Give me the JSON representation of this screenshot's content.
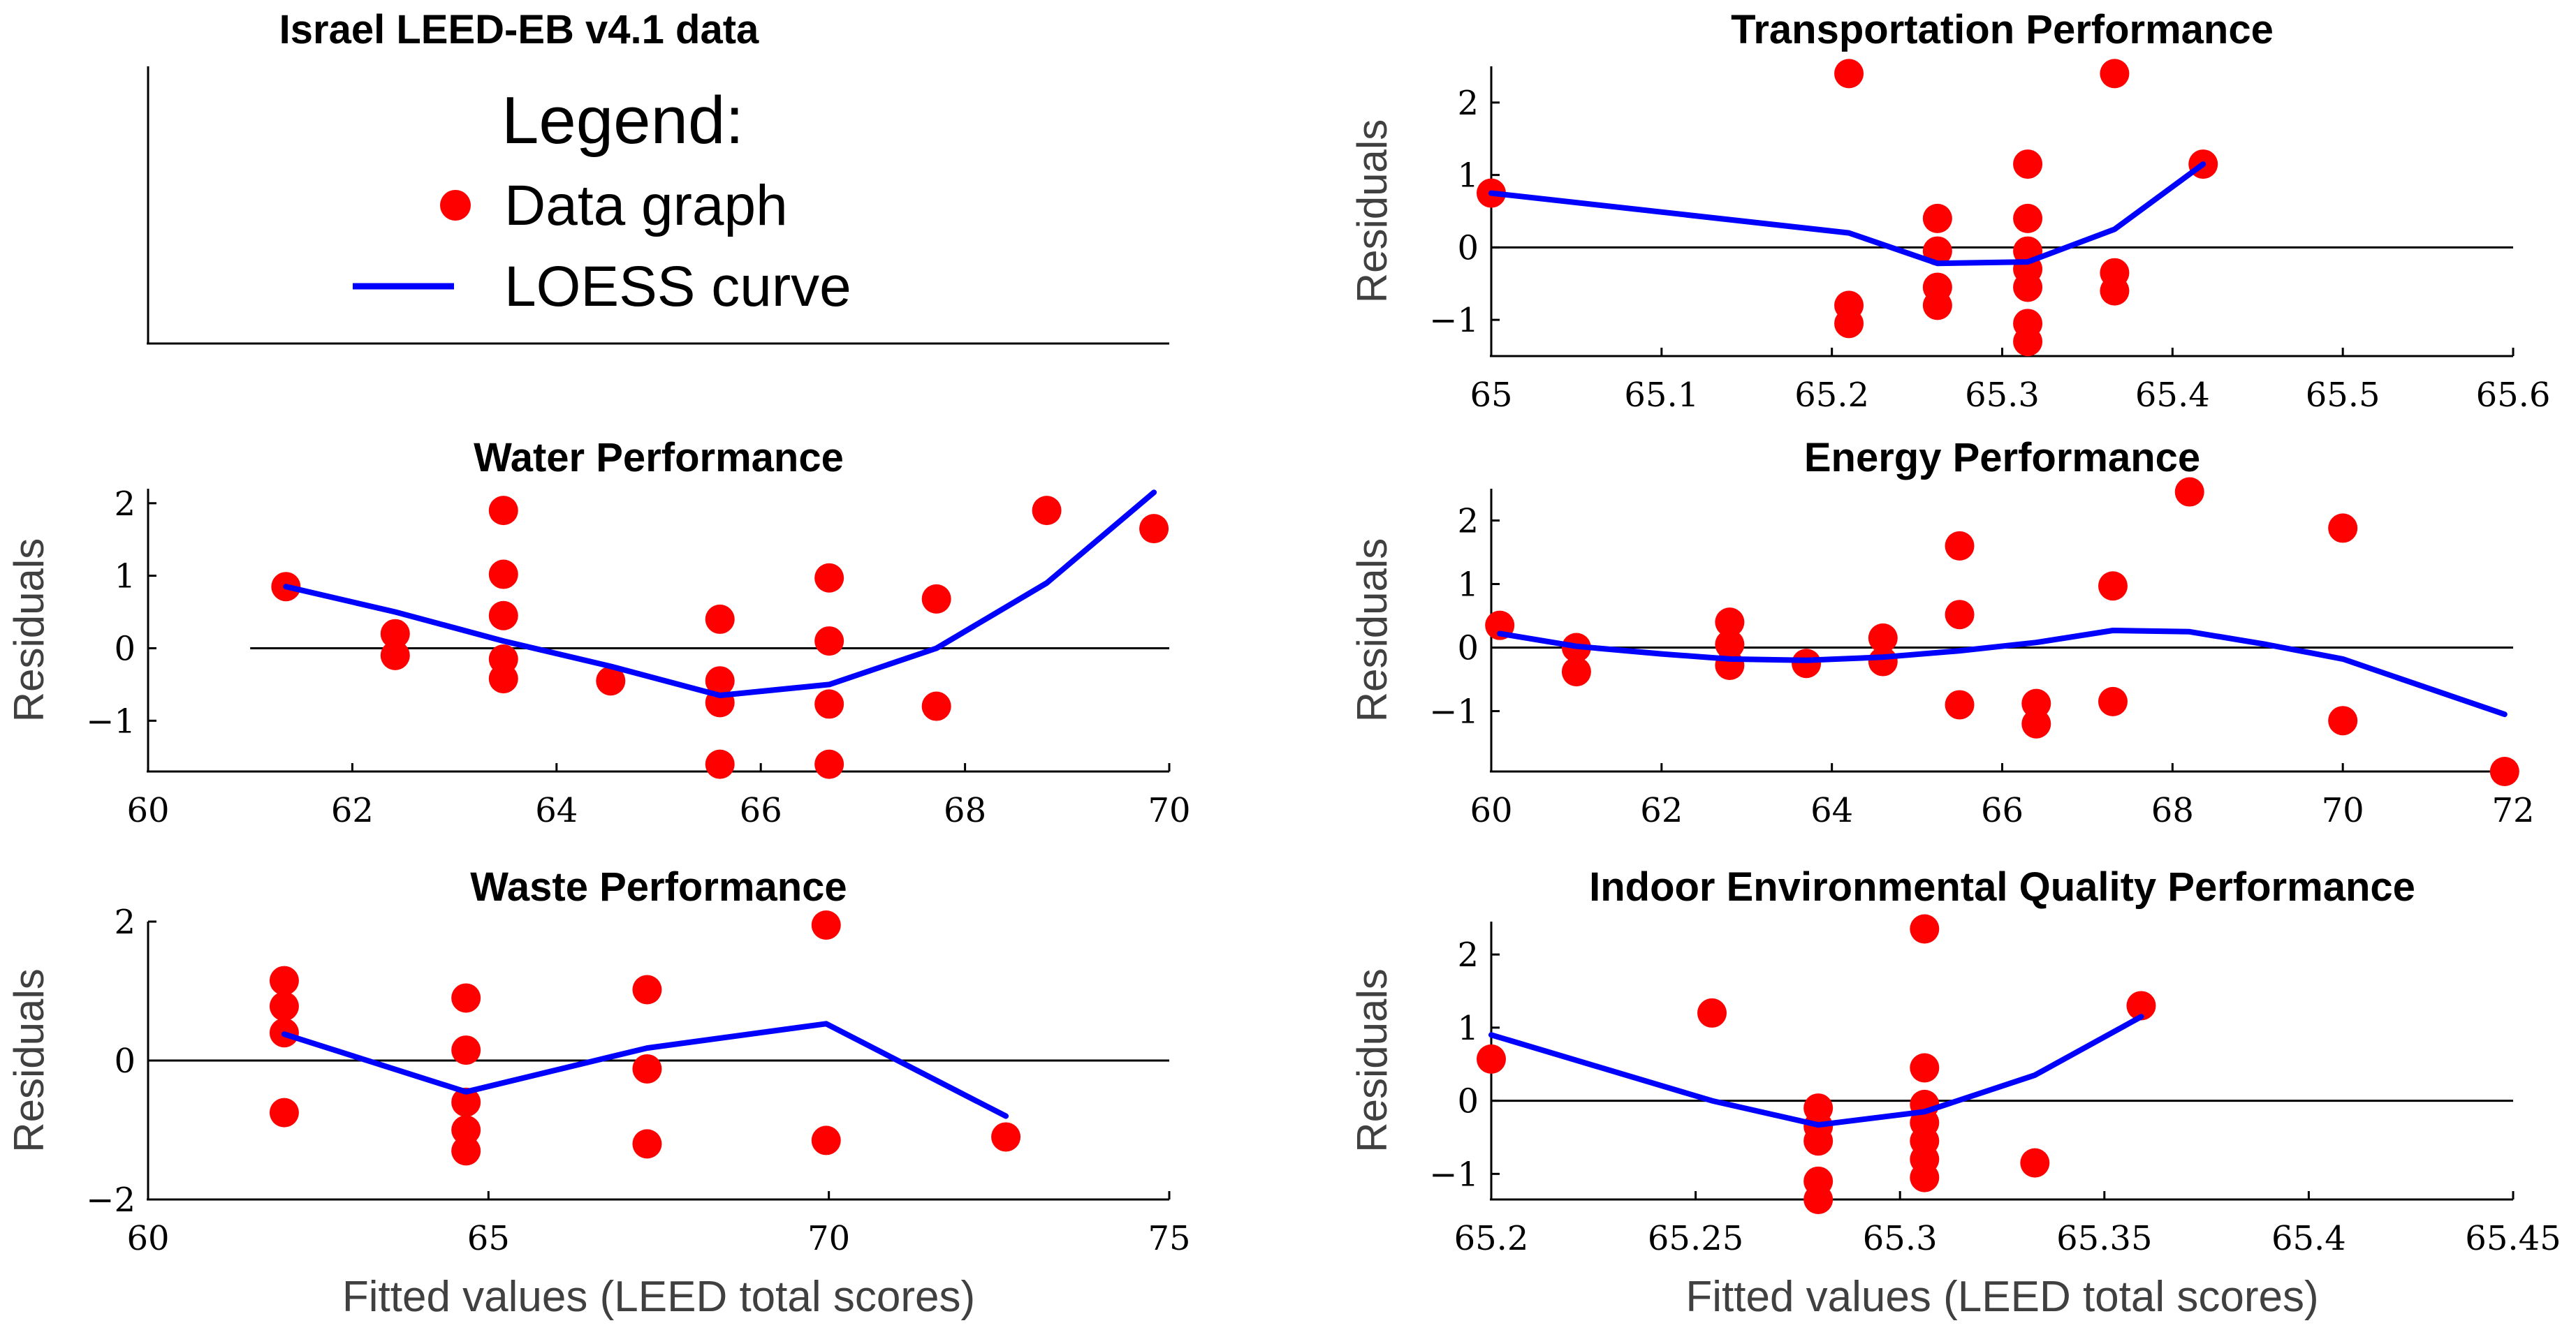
{
  "figure_title": "Israel LEED-EB v4.1 data",
  "legend": {
    "heading": "Legend:",
    "items": [
      {
        "label": "Data graph",
        "marker": "circle",
        "color": "#ff0000"
      },
      {
        "label": "LOESS curve",
        "marker": "line",
        "color": "#0000ff"
      }
    ]
  },
  "colors": {
    "points": "#ff0000",
    "loess": "#0000ff",
    "axis": "#000000",
    "zero_line": "#000000"
  },
  "chart_data": [
    {
      "id": "transport",
      "type": "scatter",
      "title": "Transportation Performance",
      "xlabel": "",
      "ylabel": "Residuals",
      "xlim": [
        65,
        65.6
      ],
      "ylim": [
        -1.5,
        2.5
      ],
      "xticks": [
        65,
        65.1,
        65.2,
        65.3,
        65.4,
        65.5,
        65.6
      ],
      "xtick_labels": [
        "65",
        "65.1",
        "65.2",
        "65.3",
        "65.4",
        "65.5",
        "65.6"
      ],
      "yticks": [
        -1,
        0,
        1,
        2
      ],
      "ytick_labels": [
        "−1",
        "0",
        "1",
        "2"
      ],
      "points": [
        [
          65.0,
          0.75
        ],
        [
          65.21,
          2.4
        ],
        [
          65.21,
          -0.8
        ],
        [
          65.21,
          -1.05
        ],
        [
          65.262,
          0.4
        ],
        [
          65.262,
          -0.05
        ],
        [
          65.262,
          -0.55
        ],
        [
          65.262,
          -0.8
        ],
        [
          65.315,
          1.15
        ],
        [
          65.315,
          0.4
        ],
        [
          65.315,
          -0.05
        ],
        [
          65.315,
          -0.3
        ],
        [
          65.315,
          -0.55
        ],
        [
          65.315,
          -1.05
        ],
        [
          65.315,
          -1.3
        ],
        [
          65.366,
          2.4
        ],
        [
          65.366,
          -0.35
        ],
        [
          65.366,
          -0.6
        ],
        [
          65.418,
          1.15
        ]
      ],
      "loess": [
        [
          65.0,
          0.75
        ],
        [
          65.21,
          0.2
        ],
        [
          65.262,
          -0.22
        ],
        [
          65.315,
          -0.2
        ],
        [
          65.366,
          0.25
        ],
        [
          65.418,
          1.15
        ]
      ]
    },
    {
      "id": "water",
      "type": "scatter",
      "title": "Water Performance",
      "xlabel": "",
      "ylabel": "Residuals",
      "xlim": [
        60,
        70
      ],
      "ylim": [
        -1.7,
        2.2
      ],
      "xticks": [
        60,
        62,
        64,
        66,
        68,
        70
      ],
      "xtick_labels": [
        "60",
        "62",
        "64",
        "66",
        "68",
        "70"
      ],
      "yticks": [
        -1,
        0,
        1,
        2
      ],
      "ytick_labels": [
        "−1",
        "0",
        "1",
        "2"
      ],
      "zero_line_xlim": [
        61.0,
        70.0
      ],
      "points": [
        [
          61.35,
          0.85
        ],
        [
          62.42,
          0.2
        ],
        [
          62.42,
          -0.1
        ],
        [
          63.48,
          1.9
        ],
        [
          63.48,
          1.02
        ],
        [
          63.48,
          0.45
        ],
        [
          63.48,
          -0.15
        ],
        [
          63.48,
          -0.42
        ],
        [
          64.53,
          -0.45
        ],
        [
          65.6,
          0.4
        ],
        [
          65.6,
          -0.45
        ],
        [
          65.6,
          -0.75
        ],
        [
          65.6,
          -1.6
        ],
        [
          66.67,
          0.97
        ],
        [
          66.67,
          0.1
        ],
        [
          66.67,
          -0.77
        ],
        [
          66.67,
          -1.6
        ],
        [
          67.72,
          0.68
        ],
        [
          67.72,
          -0.8
        ],
        [
          68.8,
          1.9
        ],
        [
          69.85,
          1.65
        ]
      ],
      "loess": [
        [
          61.35,
          0.85
        ],
        [
          62.42,
          0.5
        ],
        [
          63.48,
          0.1
        ],
        [
          64.53,
          -0.25
        ],
        [
          65.6,
          -0.65
        ],
        [
          66.67,
          -0.5
        ],
        [
          67.72,
          0.0
        ],
        [
          68.8,
          0.9
        ],
        [
          69.85,
          2.15
        ]
      ]
    },
    {
      "id": "energy",
      "type": "scatter",
      "title": "Energy Performance",
      "xlabel": "",
      "ylabel": "Residuals",
      "xlim": [
        60,
        72
      ],
      "ylim": [
        -1.95,
        2.5
      ],
      "xticks": [
        60,
        62,
        64,
        66,
        68,
        70,
        72
      ],
      "xtick_labels": [
        "60",
        "62",
        "64",
        "66",
        "68",
        "70",
        "72"
      ],
      "yticks": [
        -1,
        0,
        1,
        2
      ],
      "ytick_labels": [
        "−1",
        "0",
        "1",
        "2"
      ],
      "points": [
        [
          60.1,
          0.35
        ],
        [
          61.0,
          0.0
        ],
        [
          61.0,
          -0.38
        ],
        [
          62.8,
          0.4
        ],
        [
          62.8,
          0.05
        ],
        [
          62.8,
          -0.28
        ],
        [
          63.7,
          -0.25
        ],
        [
          64.6,
          0.15
        ],
        [
          64.6,
          -0.22
        ],
        [
          65.5,
          1.6
        ],
        [
          65.5,
          0.52
        ],
        [
          65.5,
          -0.9
        ],
        [
          66.4,
          -0.88
        ],
        [
          66.4,
          -1.2
        ],
        [
          67.3,
          0.97
        ],
        [
          67.3,
          -0.85
        ],
        [
          68.2,
          2.45
        ],
        [
          70.0,
          1.88
        ],
        [
          70.0,
          -1.15
        ],
        [
          71.9,
          -1.95
        ]
      ],
      "loess": [
        [
          60.1,
          0.22
        ],
        [
          61.0,
          0.02
        ],
        [
          62.0,
          -0.1
        ],
        [
          62.8,
          -0.18
        ],
        [
          63.7,
          -0.2
        ],
        [
          64.6,
          -0.15
        ],
        [
          65.5,
          -0.05
        ],
        [
          66.4,
          0.08
        ],
        [
          67.3,
          0.27
        ],
        [
          68.2,
          0.25
        ],
        [
          69.1,
          0.05
        ],
        [
          70.0,
          -0.18
        ],
        [
          71.9,
          -1.05
        ]
      ]
    },
    {
      "id": "waste",
      "type": "scatter",
      "title": "Waste Performance",
      "xlabel": "Fitted values (LEED total scores)",
      "ylabel": "Residuals",
      "xlim": [
        60,
        75
      ],
      "ylim": [
        -2,
        2
      ],
      "xticks": [
        60,
        65,
        70,
        75
      ],
      "xtick_labels": [
        "60",
        "65",
        "70",
        "75"
      ],
      "yticks": [
        -2,
        0,
        2
      ],
      "ytick_labels": [
        "−2",
        "0",
        "2"
      ],
      "points": [
        [
          62.0,
          1.15
        ],
        [
          62.0,
          0.78
        ],
        [
          62.0,
          0.4
        ],
        [
          62.0,
          -0.75
        ],
        [
          64.67,
          0.9
        ],
        [
          64.67,
          0.15
        ],
        [
          64.67,
          -0.6
        ],
        [
          64.67,
          -1.0
        ],
        [
          64.67,
          -1.3
        ],
        [
          67.33,
          1.02
        ],
        [
          67.33,
          -0.12
        ],
        [
          67.33,
          -1.2
        ],
        [
          69.96,
          1.95
        ],
        [
          69.96,
          -1.15
        ],
        [
          72.6,
          -1.1
        ]
      ],
      "loess": [
        [
          62.0,
          0.38
        ],
        [
          64.67,
          -0.45
        ],
        [
          67.33,
          0.18
        ],
        [
          69.96,
          0.53
        ],
        [
          72.6,
          -0.8
        ]
      ]
    },
    {
      "id": "ieq",
      "type": "scatter",
      "title": "Indoor Environmental Quality Performance",
      "xlabel": "Fitted values (LEED total scores)",
      "ylabel": "Residuals",
      "xlim": [
        65.2,
        65.45
      ],
      "ylim": [
        -1.35,
        2.45
      ],
      "xticks": [
        65.2,
        65.25,
        65.3,
        65.35,
        65.4,
        65.45
      ],
      "xtick_labels": [
        "65.2",
        "65.25",
        "65.3",
        "65.35",
        "65.4",
        "65.45"
      ],
      "yticks": [
        -1,
        0,
        1,
        2
      ],
      "ytick_labels": [
        "−1",
        "0",
        "1",
        "2"
      ],
      "points": [
        [
          65.2,
          0.57
        ],
        [
          65.254,
          1.2
        ],
        [
          65.28,
          -0.1
        ],
        [
          65.28,
          -0.35
        ],
        [
          65.28,
          -0.55
        ],
        [
          65.28,
          -1.1
        ],
        [
          65.28,
          -1.35
        ],
        [
          65.306,
          2.35
        ],
        [
          65.306,
          0.45
        ],
        [
          65.306,
          -0.05
        ],
        [
          65.306,
          -0.3
        ],
        [
          65.306,
          -0.55
        ],
        [
          65.306,
          -0.8
        ],
        [
          65.306,
          -1.05
        ],
        [
          65.333,
          -0.85
        ],
        [
          65.359,
          1.3
        ]
      ],
      "loess": [
        [
          65.2,
          0.9
        ],
        [
          65.254,
          0.0
        ],
        [
          65.28,
          -0.33
        ],
        [
          65.306,
          -0.15
        ],
        [
          65.333,
          0.35
        ],
        [
          65.359,
          1.15
        ]
      ]
    }
  ]
}
